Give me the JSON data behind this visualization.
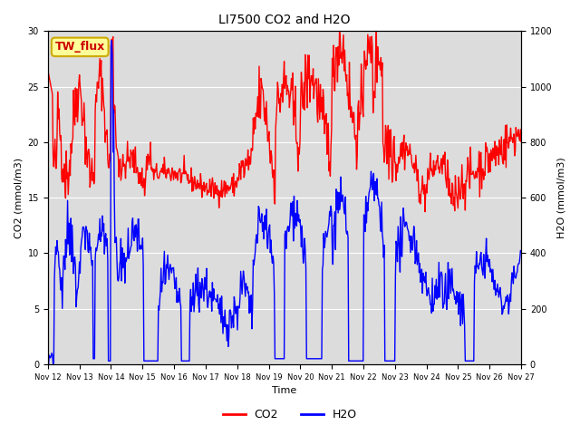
{
  "title": "LI7500 CO2 and H2O",
  "xlabel": "Time",
  "ylabel_left": "CO2 (mmol/m3)",
  "ylabel_right": "H2O (mmol/m3)",
  "ylim_left": [
    0,
    30
  ],
  "ylim_right": [
    0,
    1200
  ],
  "x_start": 12,
  "x_end": 27,
  "x_ticks": [
    12,
    13,
    14,
    15,
    16,
    17,
    18,
    19,
    20,
    21,
    22,
    23,
    24,
    25,
    26,
    27
  ],
  "x_tick_labels": [
    "Nov 12",
    "Nov 13",
    "Nov 14",
    "Nov 15",
    "Nov 16",
    "Nov 17",
    "Nov 18",
    "Nov 19",
    "Nov 20",
    "Nov 21",
    "Nov 22",
    "Nov 23",
    "Nov 24",
    "Nov 25",
    "Nov 26",
    "Nov 27"
  ],
  "co2_color": "#ff0000",
  "h2o_color": "#0000ff",
  "background_color": "#dcdcdc",
  "label_box_color": "#ffff99",
  "label_box_edge": "#ccaa00",
  "label_text": "TW_flux",
  "label_text_color": "#cc0000",
  "linewidth": 1.0,
  "legend_entries": [
    "CO2",
    "H2O"
  ],
  "yticks_left": [
    0,
    5,
    10,
    15,
    20,
    25,
    30
  ],
  "yticks_right": [
    0,
    200,
    400,
    600,
    800,
    1000,
    1200
  ],
  "title_fontsize": 10,
  "axis_label_fontsize": 8,
  "tick_fontsize": 7,
  "legend_fontsize": 9
}
